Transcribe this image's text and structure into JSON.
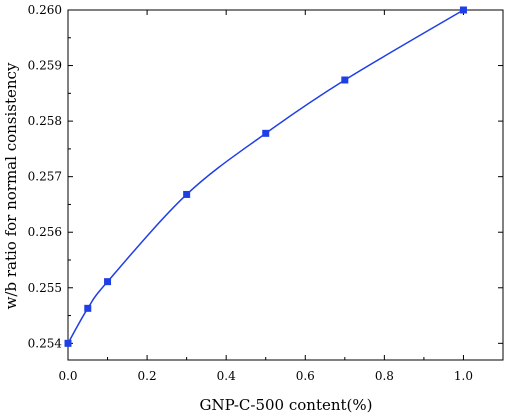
{
  "chart_data": {
    "type": "line",
    "xlabel": "GNP-C-500 content(%)",
    "ylabel": "w/b ratio for normal consistency",
    "xlim": [
      0.0,
      1.1
    ],
    "ylim": [
      0.2537,
      0.26
    ],
    "x_ticks": [
      "0.0",
      "0.2",
      "0.4",
      "0.6",
      "0.8",
      "1.0"
    ],
    "y_ticks": [
      "0.254",
      "0.255",
      "0.256",
      "0.257",
      "0.258",
      "0.259",
      "0.260"
    ],
    "x_tick_values": [
      0.0,
      0.2,
      0.4,
      0.6,
      0.8,
      1.0
    ],
    "y_tick_values": [
      0.254,
      0.255,
      0.256,
      0.257,
      0.258,
      0.259,
      0.26
    ],
    "series": [
      {
        "x": [
          0.0,
          0.05,
          0.1,
          0.3,
          0.5,
          0.7,
          1.0
        ],
        "y": [
          0.254,
          0.25463,
          0.25511,
          0.25668,
          0.25778,
          0.25874,
          0.26
        ],
        "color": "#1f3fe6",
        "marker": "square"
      }
    ],
    "grid": false,
    "legend": "none"
  }
}
